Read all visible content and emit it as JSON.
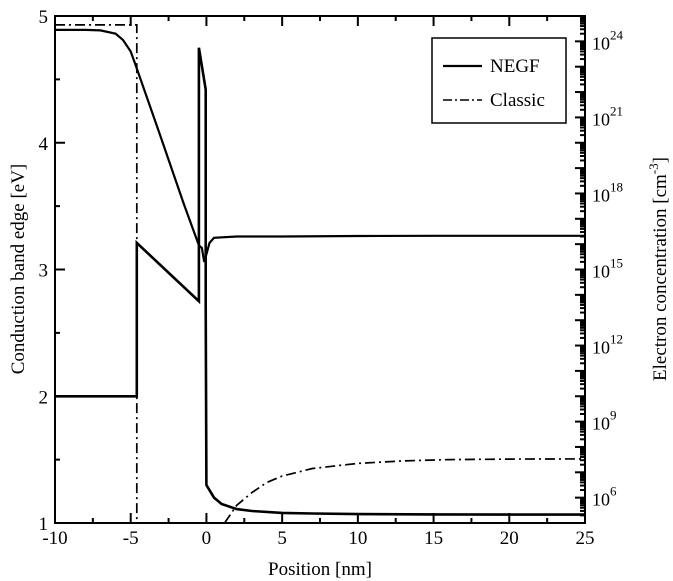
{
  "chart_data": {
    "type": "line",
    "xlabel": "Position [nm]",
    "ylabel_left": "Conduction band edge [eV]",
    "ylabel_right": {
      "text": "Electron concentration [cm",
      "exp": "-3",
      "close": "]"
    },
    "xlim": [
      -10,
      25
    ],
    "ylim_left": [
      1,
      5
    ],
    "ylim_right_log10": [
      5,
      25
    ],
    "y_right_scale": "log",
    "grid": false,
    "legend_position": "top-right",
    "x_ticks": [
      {
        "value": -10,
        "label": "-10"
      },
      {
        "value": -5,
        "label": "-5"
      },
      {
        "value": 0,
        "label": "0"
      },
      {
        "value": 5,
        "label": "5"
      },
      {
        "value": 10,
        "label": "10"
      },
      {
        "value": 15,
        "label": "15"
      },
      {
        "value": 20,
        "label": "20"
      },
      {
        "value": 25,
        "label": "25"
      }
    ],
    "y_left_ticks": [
      {
        "value": 1,
        "label": "1"
      },
      {
        "value": 2,
        "label": "2"
      },
      {
        "value": 3,
        "label": "3"
      },
      {
        "value": 4,
        "label": "4"
      },
      {
        "value": 5,
        "label": "5"
      }
    ],
    "y_right_ticks": [
      {
        "exp_value": 6,
        "base": "10",
        "exp": "6"
      },
      {
        "exp_value": 9,
        "base": "10",
        "exp": "9"
      },
      {
        "exp_value": 12,
        "base": "10",
        "exp": "12"
      },
      {
        "exp_value": 15,
        "base": "10",
        "exp": "15"
      },
      {
        "exp_value": 18,
        "base": "10",
        "exp": "18"
      },
      {
        "exp_value": 21,
        "base": "10",
        "exp": "21"
      },
      {
        "exp_value": 24,
        "base": "10",
        "exp": "24"
      }
    ],
    "series": [
      {
        "name": "NEGF",
        "style": "solid",
        "color": "#000000",
        "lines": [
          {
            "quantity": "conduction band edge [eV]",
            "axis": "left",
            "points": [
              [
                -10,
                2.0
              ],
              [
                -4.6,
                2.0
              ],
              [
                -4.6,
                3.21
              ],
              [
                -0.5,
                2.75
              ],
              [
                -0.5,
                4.75
              ],
              [
                -0.05,
                4.42
              ],
              [
                -0.05,
                2.73
              ],
              [
                0.0,
                1.3
              ],
              [
                0.5,
                1.2
              ],
              [
                1,
                1.15
              ],
              [
                2,
                1.11
              ],
              [
                3,
                1.095
              ],
              [
                5,
                1.08
              ],
              [
                7,
                1.075
              ],
              [
                10,
                1.07
              ],
              [
                15,
                1.068
              ],
              [
                20,
                1.066
              ],
              [
                25,
                1.066
              ]
            ]
          },
          {
            "quantity": "electron concentration [cm^-3]",
            "axis": "right",
            "log10_points": [
              [
                -10,
                24.45
              ],
              [
                -8,
                24.45
              ],
              [
                -7,
                24.43
              ],
              [
                -6,
                24.3
              ],
              [
                -5.5,
                24.05
              ],
              [
                -5,
                23.6
              ],
              [
                -4.7,
                23.1
              ],
              [
                -3,
                20.2
              ],
              [
                -1.5,
                17.6
              ],
              [
                -0.5,
                15.95
              ],
              [
                -0.3,
                15.85
              ],
              [
                -0.15,
                15.3
              ],
              [
                0,
                15.6
              ],
              [
                0.2,
                16.05
              ],
              [
                0.5,
                16.25
              ],
              [
                2,
                16.3
              ],
              [
                5,
                16.3
              ],
              [
                10,
                16.32
              ],
              [
                15,
                16.33
              ],
              [
                20,
                16.33
              ],
              [
                25,
                16.33
              ]
            ]
          }
        ]
      },
      {
        "name": "Classic",
        "style": "dashdot",
        "color": "#000000",
        "lines": [
          {
            "quantity": "conduction band edge [eV]",
            "axis": "left",
            "points": [
              [
                -10,
                4.93
              ],
              [
                -4.6,
                4.93
              ],
              [
                -4.6,
                1.0
              ]
            ]
          },
          {
            "quantity": "electron concentration [cm^-3]",
            "axis": "right",
            "log10_points": [
              [
                1.2,
                5.0
              ],
              [
                2,
                5.7
              ],
              [
                3,
                6.2
              ],
              [
                4,
                6.6
              ],
              [
                5,
                6.85
              ],
              [
                7,
                7.15
              ],
              [
                10,
                7.35
              ],
              [
                13,
                7.45
              ],
              [
                16,
                7.5
              ],
              [
                20,
                7.52
              ],
              [
                25,
                7.53
              ]
            ]
          }
        ]
      }
    ]
  }
}
